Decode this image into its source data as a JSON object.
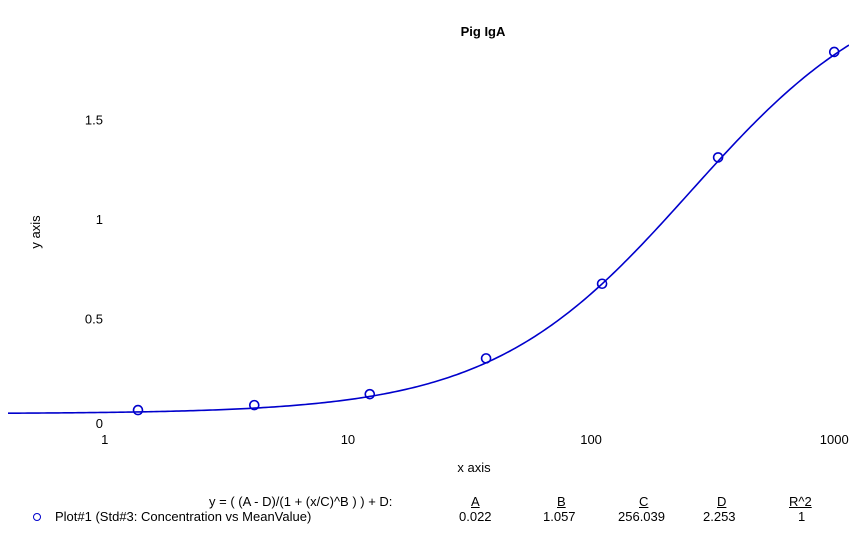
{
  "chart_data": {
    "type": "line",
    "title": "Pig IgA",
    "xlabel": "x axis",
    "ylabel": "y axis",
    "x_scale": "log",
    "xlim": [
      0.4,
      1150
    ],
    "ylim": [
      -0.06,
      1.9
    ],
    "x_ticks": [
      1,
      10,
      100,
      1000
    ],
    "x_tick_labels": [
      "1",
      "10",
      "100",
      "1000"
    ],
    "y_ticks": [
      0,
      0.5,
      1,
      1.5
    ],
    "y_tick_labels": [
      "0",
      "0.5",
      "1",
      "1.5"
    ],
    "series": [
      {
        "name": "Plot#1 (Std#3: Concentration vs MeanValue)",
        "marker": "circle",
        "color": "#0000cc",
        "x": [
          1.37,
          4.12,
          12.3,
          37.0,
          111,
          333,
          1000
        ],
        "y": [
          0.04,
          0.065,
          0.12,
          0.3,
          0.675,
          1.31,
          1.84
        ]
      }
    ],
    "fit": {
      "equation": "y = ( (A - D)/(1 + (x/C)^B ) ) + D:",
      "param_headers": [
        "A",
        "B",
        "C",
        "D",
        "R^2"
      ],
      "param_values": [
        "0.022",
        "1.057",
        "256.039",
        "2.253",
        "1"
      ],
      "A": 0.022,
      "B": 1.057,
      "C": 256.039,
      "D": 2.253
    },
    "grid": false
  }
}
